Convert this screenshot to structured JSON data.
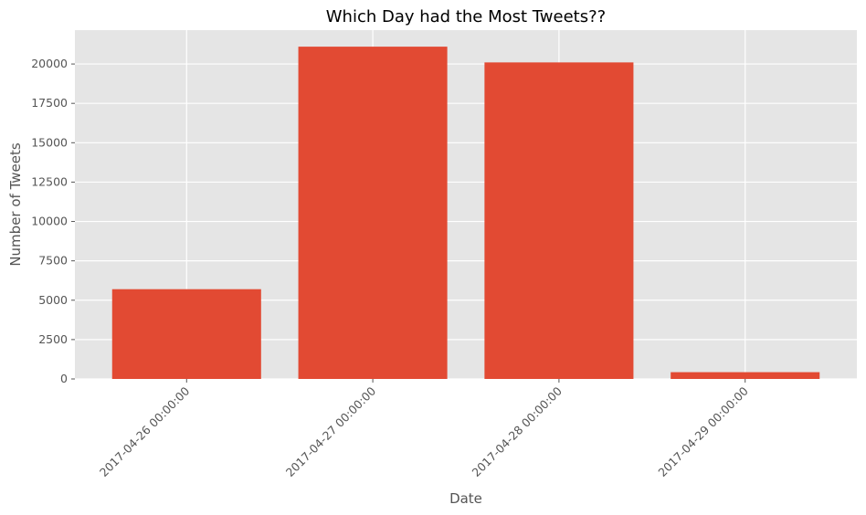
{
  "chart_data": {
    "type": "bar",
    "title": "Which Day had the Most Tweets??",
    "xlabel": "Date",
    "ylabel": "Number of Tweets",
    "categories": [
      "2017-04-26 00:00:00",
      "2017-04-27 00:00:00",
      "2017-04-28 00:00:00",
      "2017-04-29 00:00:00"
    ],
    "values": [
      5700,
      21100,
      20100,
      430
    ],
    "ylim": [
      0,
      22150
    ],
    "yticks": [
      0,
      2500,
      5000,
      7500,
      10000,
      12500,
      15000,
      17500,
      20000
    ],
    "ytick_labels": [
      "0",
      "2500",
      "5000",
      "7500",
      "10000",
      "12500",
      "15000",
      "17500",
      "20000"
    ],
    "grid": true,
    "legend": "none",
    "colors": {
      "bar": "#E24A33",
      "plot_background": "#E5E5E5",
      "grid": "#FFFFFF",
      "text": "#555555"
    }
  }
}
